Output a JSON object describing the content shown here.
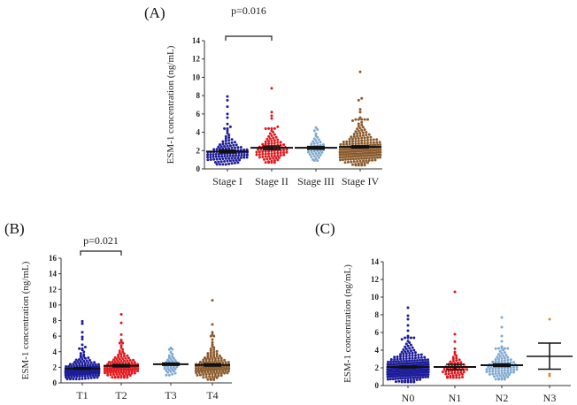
{
  "chart_data": [
    {
      "type": "scatter",
      "panel_label": "(A)",
      "ylabel": "ESM-1 concentration (ng/mL)",
      "ylim": [
        0,
        14
      ],
      "yticks": [
        0,
        2,
        4,
        6,
        8,
        10,
        12,
        14
      ],
      "categories": [
        "Stage I",
        "Stage II",
        "Stage III",
        "Stage IV"
      ],
      "annotation": {
        "text": "p=0.016",
        "between": [
          "Stage I",
          "Stage II"
        ]
      },
      "groups": [
        {
          "name": "Stage I",
          "color": "#1c1c9a",
          "n": 110,
          "median": 1.7,
          "spread": 0.45,
          "min": 0.5,
          "mean": 1.9,
          "err": 0.15,
          "outliers": [
            4.6,
            4.9,
            5.6,
            6.0,
            6.8,
            7.5,
            7.9
          ]
        },
        {
          "name": "Stage II",
          "color": "#e0181e",
          "n": 90,
          "median": 2.1,
          "spread": 0.42,
          "min": 0.7,
          "mean": 2.3,
          "err": 0.2,
          "outliers": [
            4.6,
            5.5,
            5.8,
            6.2,
            8.8
          ]
        },
        {
          "name": "Stage III",
          "color": "#7fa9d2",
          "n": 45,
          "median": 2.2,
          "spread": 0.35,
          "min": 0.9,
          "mean": 2.3,
          "err": 0.15,
          "outliers": [
            4.5
          ]
        },
        {
          "name": "Stage IV",
          "color": "#8a5a2c",
          "n": 200,
          "median": 2.1,
          "spread": 0.48,
          "min": 0.4,
          "mean": 2.4,
          "err": 0.12,
          "outliers": [
            5.6,
            6.2,
            6.5,
            7.5,
            7.7,
            10.6
          ]
        }
      ]
    },
    {
      "type": "scatter",
      "panel_label": "(B)",
      "ylabel": "ESM-1 concentration (ng/mL)",
      "ylim": [
        0,
        16
      ],
      "yticks": [
        0,
        2,
        4,
        6,
        8,
        10,
        12,
        14,
        16
      ],
      "categories": [
        "T1",
        "T2",
        "T3",
        "T4"
      ],
      "annotation": {
        "text": "p=0.021",
        "between": [
          "T1",
          "T2"
        ]
      },
      "groups": [
        {
          "name": "T1",
          "color": "#1c1c9a",
          "n": 140,
          "median": 1.65,
          "spread": 0.45,
          "min": 0.5,
          "mean": 1.85,
          "err": 0.12,
          "outliers": [
            4.6,
            4.9,
            5.6,
            5.9,
            6.5,
            7.6,
            7.9
          ]
        },
        {
          "name": "T2",
          "color": "#e0181e",
          "n": 120,
          "median": 2.0,
          "spread": 0.43,
          "min": 0.7,
          "mean": 2.2,
          "err": 0.15,
          "outliers": [
            5.3,
            5.5,
            6.2,
            7.7,
            8.8
          ]
        },
        {
          "name": "T3",
          "color": "#7fa9d2",
          "n": 40,
          "median": 2.3,
          "spread": 0.35,
          "min": 1.0,
          "mean": 2.4,
          "err": 0.15,
          "outliers": [
            4.5
          ]
        },
        {
          "name": "T4",
          "color": "#8a5a2c",
          "n": 130,
          "median": 2.1,
          "spread": 0.47,
          "min": 0.4,
          "mean": 2.3,
          "err": 0.15,
          "outliers": [
            6.2,
            6.5,
            7.5,
            10.6
          ]
        }
      ]
    },
    {
      "type": "scatter",
      "panel_label": "(C)",
      "ylabel": "ESM-1 concentration (ng/mL)",
      "ylim": [
        0,
        14
      ],
      "yticks": [
        0,
        2,
        4,
        6,
        8,
        10,
        12,
        14
      ],
      "categories": [
        "N0",
        "N1",
        "N2",
        "N3"
      ],
      "groups": [
        {
          "name": "N0",
          "color": "#1c1c9a",
          "n": 250,
          "median": 1.95,
          "spread": 0.47,
          "min": 0.4,
          "mean": 2.1,
          "err": 0.1,
          "outliers": [
            5.6,
            6.2,
            6.8,
            7.5,
            7.9,
            8.8
          ]
        },
        {
          "name": "N1",
          "color": "#e0181e",
          "n": 60,
          "median": 1.9,
          "spread": 0.4,
          "min": 0.9,
          "mean": 2.1,
          "err": 0.3,
          "outliers": [
            5.8,
            10.6
          ]
        },
        {
          "name": "N2",
          "color": "#7fa9d2",
          "n": 90,
          "median": 2.1,
          "spread": 0.42,
          "min": 0.7,
          "mean": 2.3,
          "err": 0.15,
          "outliers": [
            4.4,
            5.0,
            5.6,
            6.6,
            7.7
          ]
        },
        {
          "name": "N3",
          "color": "#e08a2c",
          "n": 0,
          "values": [
            7.5,
            1.3,
            1.1
          ],
          "mean": 3.3,
          "err_low": 1.85,
          "err_high": 4.8
        }
      ]
    }
  ]
}
